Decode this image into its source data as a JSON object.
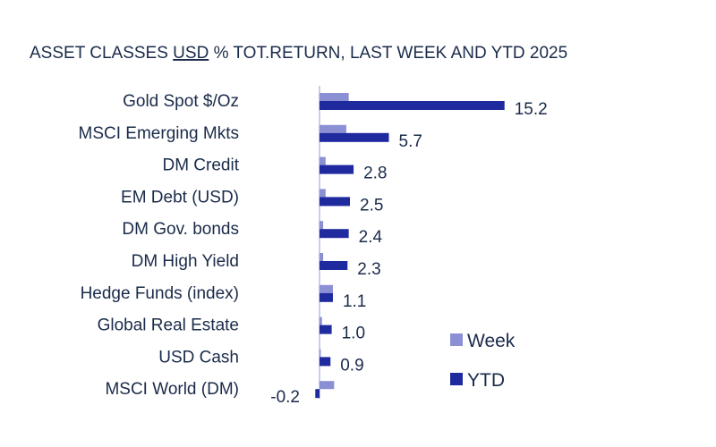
{
  "chart_data": {
    "type": "bar",
    "orientation": "horizontal",
    "title_parts": [
      "ASSET CLASSES ",
      "USD",
      " % TOT.RETURN, LAST WEEK AND YTD 2025"
    ],
    "categories": [
      "Gold Spot   $/Oz",
      "MSCI Emerging Mkts",
      "DM Credit",
      "EM Debt (USD)",
      "DM Gov. bonds",
      "DM High Yield",
      "Hedge Funds (index)",
      "Global Real Estate",
      "USD Cash",
      "MSCI World (DM)"
    ],
    "series": [
      {
        "name": "Week",
        "color": "#8b8fd4",
        "values": [
          2.4,
          2.2,
          0.5,
          0.5,
          0.3,
          0.3,
          1.1,
          0.2,
          0.1,
          1.2
        ]
      },
      {
        "name": "YTD",
        "color": "#1e2a9e",
        "values": [
          15.2,
          5.7,
          2.8,
          2.5,
          2.4,
          2.3,
          1.1,
          1.0,
          0.9,
          -0.2
        ]
      }
    ],
    "data_labels": [
      "15.2",
      "5.7",
      "2.8",
      "2.5",
      "2.4",
      "2.3",
      "1.1",
      "1.0",
      "0.9",
      "-0.2"
    ],
    "axis_line_color": "#c5d0e6",
    "grid": false,
    "legend_position": "bottom-right"
  }
}
